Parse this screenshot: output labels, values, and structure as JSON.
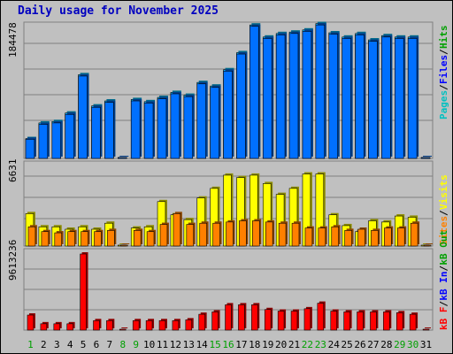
{
  "title": "Daily usage for November 2025",
  "colors": {
    "hits": "#00c0ff",
    "files": "#0070ff",
    "visits": "#ffff00",
    "sites": "#ff8000",
    "kbytes": "#ff0000",
    "day_weekday": "#000000",
    "day_weekend": "#00a000",
    "title": "#0000c0"
  },
  "legends": {
    "top": [
      {
        "label": "Pages",
        "color": "#00c0c0"
      },
      {
        "label": "Files",
        "color": "#0000ff"
      },
      {
        "label": "Hits",
        "color": "#00a000"
      }
    ],
    "middle": [
      {
        "label": "Sites",
        "color": "#ff8000"
      },
      {
        "label": "Visits",
        "color": "#ffff00"
      }
    ],
    "bottom": [
      {
        "label": "kB F",
        "color": "#ff0000"
      },
      {
        "label": "kB In",
        "color": "#0000ff"
      },
      {
        "label": "kB Out",
        "color": "#00a000"
      }
    ]
  },
  "chart_data": [
    {
      "type": "bar",
      "ymax_label": "184478",
      "ylim": [
        0,
        184478
      ],
      "categories": [
        "1",
        "2",
        "3",
        "4",
        "5",
        "6",
        "7",
        "8",
        "9",
        "10",
        "11",
        "12",
        "13",
        "14",
        "15",
        "16",
        "17",
        "18",
        "19",
        "20",
        "21",
        "22",
        "23",
        "24",
        "25",
        "26",
        "27",
        "28",
        "29",
        "30",
        "31"
      ],
      "weekend_days": [
        "1",
        "8",
        "9",
        "15",
        "16",
        "22",
        "23",
        "29",
        "30"
      ],
      "series": [
        {
          "name": "Hits",
          "values": [
            28000,
            50000,
            52000,
            64000,
            118000,
            74000,
            81000,
            0,
            83000,
            80000,
            86000,
            93000,
            89000,
            107000,
            102000,
            125000,
            149000,
            188000,
            171000,
            176000,
            178000,
            181000,
            190000,
            177000,
            171000,
            176000,
            167000,
            173000,
            171000,
            171000,
            0
          ]
        },
        {
          "name": "Files",
          "values": [
            27000,
            48000,
            50000,
            62000,
            116000,
            72000,
            79000,
            0,
            81000,
            78000,
            84000,
            91000,
            87000,
            105000,
            100000,
            123000,
            147000,
            186000,
            169000,
            174000,
            176000,
            179000,
            188000,
            175000,
            169000,
            174000,
            165000,
            171000,
            169000,
            169000,
            0
          ]
        }
      ],
      "grid": true
    },
    {
      "type": "bar",
      "ymax_label": "6631",
      "ylim": [
        0,
        6631
      ],
      "series": [
        {
          "name": "Visits",
          "values": [
            2700,
            1600,
            1600,
            1400,
            1600,
            1400,
            1900,
            0,
            1500,
            1600,
            3700,
            2600,
            2200,
            4000,
            4800,
            5900,
            5700,
            5900,
            5200,
            4300,
            4800,
            6000,
            6000,
            2600,
            1700,
            1200,
            2100,
            2000,
            2500,
            2400,
            0
          ]
        },
        {
          "name": "Sites",
          "values": [
            1600,
            1200,
            1100,
            1200,
            1200,
            1200,
            1300,
            0,
            1300,
            1200,
            1800,
            2700,
            1800,
            1900,
            1900,
            2000,
            2100,
            2100,
            2000,
            1900,
            1900,
            1500,
            1500,
            1600,
            1300,
            1400,
            1300,
            1500,
            1500,
            1900,
            0
          ]
        }
      ],
      "grid": true
    },
    {
      "type": "bar",
      "ymax_label": "9613236",
      "ylim": [
        0,
        9613236
      ],
      "series": [
        {
          "name": "kB F",
          "values": [
            1900000,
            800000,
            800000,
            800000,
            9613236,
            1200000,
            1200000,
            0,
            1200000,
            1200000,
            1200000,
            1200000,
            1300000,
            2000000,
            2300000,
            3200000,
            3200000,
            3200000,
            2600000,
            2400000,
            2400000,
            2700000,
            3400000,
            2400000,
            2300000,
            2300000,
            2300000,
            2300000,
            2200000,
            2000000,
            0
          ]
        }
      ],
      "grid": true
    }
  ]
}
